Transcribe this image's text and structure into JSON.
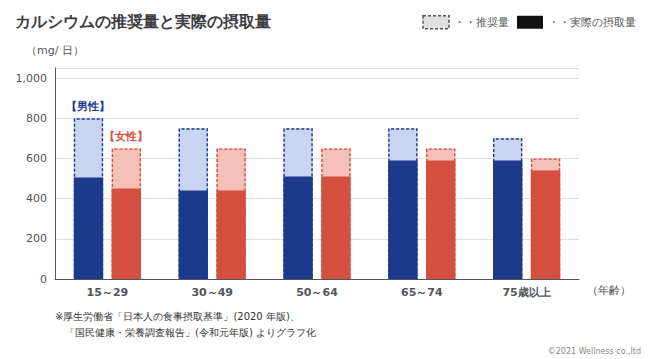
{
  "chart_data": {
    "type": "bar",
    "title": "カルシウムの推奨量と実際の摂取量",
    "ylabel": "（mg/ 日）",
    "xlabel": "（年齢）",
    "categories": [
      "15～29",
      "30～49",
      "50～64",
      "65～74",
      "75歳以上"
    ],
    "series": [
      {
        "name": "【男性】",
        "color": "#1b3a8c",
        "recommended_color": "#c8d4f0",
        "recommended": [
          800,
          750,
          750,
          750,
          700
        ],
        "actual": [
          505,
          440,
          510,
          590,
          590
        ]
      },
      {
        "name": "【女性】",
        "color": "#d44f3e",
        "recommended_color": "#f5c0b8",
        "recommended": [
          650,
          650,
          650,
          650,
          600
        ],
        "actual": [
          450,
          440,
          510,
          590,
          540
        ]
      }
    ],
    "legend_entries": [
      {
        "label": "・・推奨量",
        "color": "#e0e0e0"
      },
      {
        "label": "・・実際の摂取量",
        "color": "#111111"
      }
    ],
    "legend": "upper right",
    "ylim": [
      0,
      1050
    ],
    "yticks": [
      0,
      200,
      400,
      600,
      800,
      {
        "value": 1000,
        "label": "1,000"
      }
    ],
    "grid": true,
    "footnotes": [
      "※厚生労働省「日本人の食事摂取基準」(2020 年版)、",
      "　「国民健康・栄養調査報告」(令和元年版) よりグラフ化"
    ],
    "copyright": "©2021 Wellness co.,ltd"
  }
}
